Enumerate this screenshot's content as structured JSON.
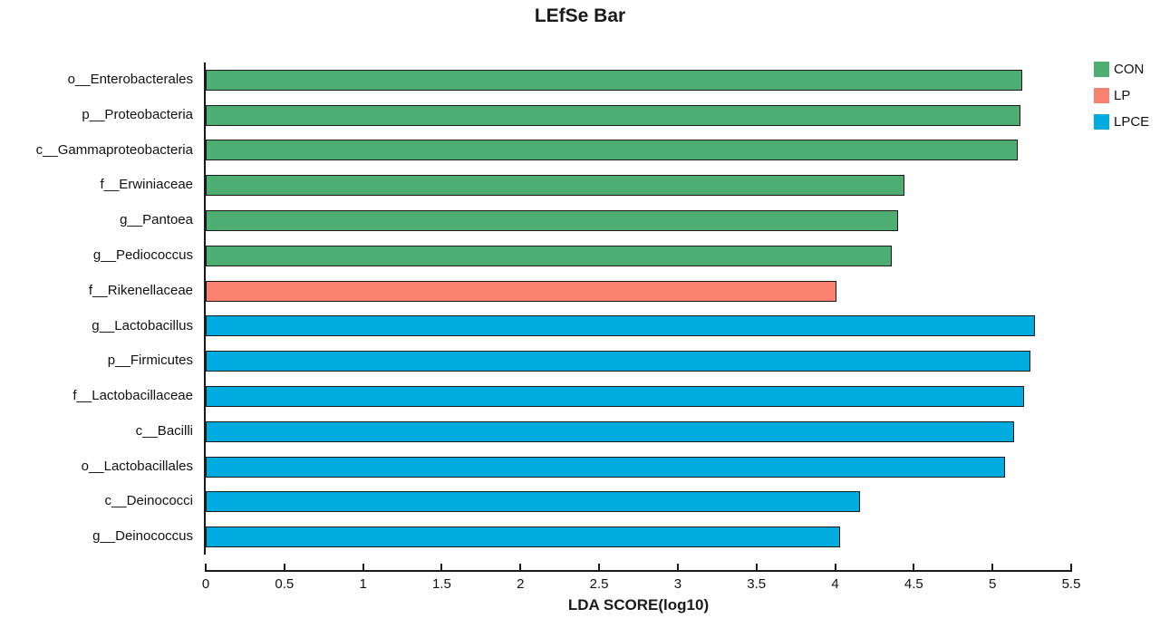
{
  "chart_data": {
    "type": "bar",
    "orientation": "horizontal",
    "title": "LEfSe Bar",
    "xlabel": "LDA SCORE(log10)",
    "xlim": [
      0,
      5.5
    ],
    "xticks": [
      "0",
      "0.5",
      "1",
      "1.5",
      "2",
      "2.5",
      "3",
      "3.5",
      "4",
      "4.5",
      "5",
      "5.5"
    ],
    "grid": false,
    "legend_position": "top-right",
    "legend": [
      {
        "name": "CON",
        "color": "#4EAE72"
      },
      {
        "name": "LP",
        "color": "#FB8270"
      },
      {
        "name": "LPCE",
        "color": "#00ABDF"
      }
    ],
    "bars": [
      {
        "label": "o__Enterobacterales",
        "group": "CON",
        "value": 5.19
      },
      {
        "label": "p__Proteobacteria",
        "group": "CON",
        "value": 5.18
      },
      {
        "label": "c__Gammaproteobacteria",
        "group": "CON",
        "value": 5.16
      },
      {
        "label": "f__Erwiniaceae",
        "group": "CON",
        "value": 4.44
      },
      {
        "label": "g__Pantoea",
        "group": "CON",
        "value": 4.4
      },
      {
        "label": "g__Pediococcus",
        "group": "CON",
        "value": 4.36
      },
      {
        "label": "f__Rikenellaceae",
        "group": "LP",
        "value": 4.01
      },
      {
        "label": "g__Lactobacillus",
        "group": "LPCE",
        "value": 5.27
      },
      {
        "label": "p__Firmicutes",
        "group": "LPCE",
        "value": 5.24
      },
      {
        "label": "f__Lactobacillaceae",
        "group": "LPCE",
        "value": 5.2
      },
      {
        "label": "c__Bacilli",
        "group": "LPCE",
        "value": 5.14
      },
      {
        "label": "o__Lactobacillales",
        "group": "LPCE",
        "value": 5.08
      },
      {
        "label": "c__Deinococci",
        "group": "LPCE",
        "value": 4.16
      },
      {
        "label": "g__Deinococcus",
        "group": "LPCE",
        "value": 4.03
      }
    ],
    "colors": {
      "axis": "#1a1a1a",
      "bar_border": "#1a1a1a",
      "text": "#111111"
    }
  }
}
